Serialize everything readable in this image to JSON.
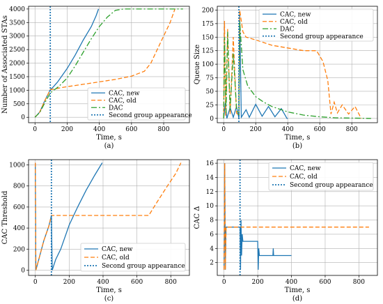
{
  "chart_data": [
    {
      "type": "line",
      "caption": "(a)",
      "xlabel": "Time, s",
      "ylabel": "Number of Associated STAs",
      "xlim": [
        -40,
        960
      ],
      "ylim": [
        -200,
        4100
      ],
      "xticks": [
        0,
        200,
        400,
        600,
        800
      ],
      "yticks": [
        0,
        500,
        1000,
        1500,
        2000,
        2500,
        3000,
        3500,
        4000
      ],
      "grid": true,
      "legend": "bottom-right",
      "series": [
        {
          "name": "CAC, new",
          "color": "#1f77b4",
          "dash": "",
          "points": [
            [
              0,
              0
            ],
            [
              30,
              200
            ],
            [
              60,
              600
            ],
            [
              95,
              1020
            ],
            [
              110,
              1100
            ],
            [
              140,
              1300
            ],
            [
              200,
              1800
            ],
            [
              250,
              2300
            ],
            [
              300,
              2850
            ],
            [
              350,
              3350
            ],
            [
              380,
              3750
            ],
            [
              395,
              4000
            ]
          ]
        },
        {
          "name": "CAC, old",
          "color": "#ff7f0e",
          "dash": "6,3",
          "points": [
            [
              0,
              0
            ],
            [
              30,
              200
            ],
            [
              60,
              600
            ],
            [
              95,
              1020
            ],
            [
              150,
              1080
            ],
            [
              200,
              1130
            ],
            [
              300,
              1220
            ],
            [
              400,
              1310
            ],
            [
              500,
              1400
            ],
            [
              600,
              1520
            ],
            [
              680,
              1700
            ],
            [
              720,
              2000
            ],
            [
              760,
              2500
            ],
            [
              800,
              3000
            ],
            [
              840,
              3500
            ],
            [
              870,
              4000
            ]
          ]
        },
        {
          "name": "DAC",
          "color": "#2ca02c",
          "dash": "8,3,2,3",
          "points": [
            [
              0,
              0
            ],
            [
              30,
              180
            ],
            [
              60,
              520
            ],
            [
              95,
              900
            ],
            [
              150,
              1150
            ],
            [
              200,
              1450
            ],
            [
              250,
              1900
            ],
            [
              300,
              2400
            ],
            [
              350,
              2900
            ],
            [
              400,
              3350
            ],
            [
              450,
              3700
            ],
            [
              500,
              3950
            ],
            [
              550,
              4000
            ],
            [
              920,
              4000
            ]
          ]
        },
        {
          "name": "Second group appearance",
          "color": "#1f77b4",
          "dash": "2,2",
          "vline": 95
        }
      ]
    },
    {
      "type": "line",
      "caption": "(b)",
      "xlabel": "Time, s",
      "ylabel": "Queue Size",
      "xlim": [
        -40,
        960
      ],
      "ylim": [
        -8,
        207
      ],
      "xticks": [
        0,
        200,
        400,
        600,
        800
      ],
      "yticks": [
        0,
        25,
        50,
        75,
        100,
        125,
        150,
        175,
        200
      ],
      "grid": true,
      "legend": "top-right",
      "series": [
        {
          "name": "CAC, new",
          "color": "#1f77b4",
          "dash": "",
          "points": [
            [
              0,
              0
            ],
            [
              10,
              28
            ],
            [
              20,
              0
            ],
            [
              40,
              20
            ],
            [
              60,
              2
            ],
            [
              80,
              22
            ],
            [
              95,
              0
            ],
            [
              100,
              195
            ],
            [
              110,
              2
            ],
            [
              140,
              16
            ],
            [
              160,
              2
            ],
            [
              200,
              26
            ],
            [
              240,
              4
            ],
            [
              280,
              22
            ],
            [
              320,
              3
            ],
            [
              360,
              18
            ],
            [
              395,
              0
            ],
            [
              400,
              0
            ]
          ]
        },
        {
          "name": "CAC, old",
          "color": "#ff7f0e",
          "dash": "6,3",
          "points": [
            [
              0,
              0
            ],
            [
              5,
              180
            ],
            [
              12,
              5
            ],
            [
              25,
              165
            ],
            [
              40,
              8
            ],
            [
              60,
              150
            ],
            [
              80,
              10
            ],
            [
              95,
              5
            ],
            [
              100,
              200
            ],
            [
              120,
              160
            ],
            [
              140,
              150
            ],
            [
              200,
              145
            ],
            [
              300,
              135
            ],
            [
              400,
              130
            ],
            [
              500,
              125
            ],
            [
              580,
              125
            ],
            [
              620,
              105
            ],
            [
              650,
              70
            ],
            [
              670,
              8
            ],
            [
              690,
              30
            ],
            [
              710,
              10
            ],
            [
              740,
              25
            ],
            [
              780,
              8
            ],
            [
              820,
              22
            ],
            [
              850,
              5
            ],
            [
              860,
              0
            ]
          ]
        },
        {
          "name": "DAC",
          "color": "#2ca02c",
          "dash": "8,3,2,3",
          "points": [
            [
              0,
              0
            ],
            [
              5,
              150
            ],
            [
              15,
              10
            ],
            [
              25,
              160
            ],
            [
              40,
              15
            ],
            [
              60,
              120
            ],
            [
              80,
              20
            ],
            [
              95,
              5
            ],
            [
              100,
              180
            ],
            [
              120,
              90
            ],
            [
              150,
              60
            ],
            [
              200,
              40
            ],
            [
              250,
              30
            ],
            [
              300,
              22
            ],
            [
              400,
              12
            ],
            [
              500,
              6
            ],
            [
              600,
              3
            ],
            [
              700,
              1
            ],
            [
              920,
              0
            ]
          ]
        },
        {
          "name": "Second group appearance",
          "color": "#1f77b4",
          "dash": "2,2",
          "vline": 95
        }
      ]
    },
    {
      "type": "line",
      "caption": "(c)",
      "xlabel": "Time, s",
      "ylabel": "CAC Threshold",
      "xlim": [
        -40,
        910
      ],
      "ylim": [
        -50,
        1050
      ],
      "xticks": [
        0,
        200,
        400,
        600,
        800
      ],
      "yticks": [
        0,
        200,
        400,
        600,
        800,
        1000
      ],
      "grid": true,
      "legend": "bottom-right",
      "series": [
        {
          "name": "CAC, new",
          "color": "#1f77b4",
          "dash": "",
          "points": [
            [
              0,
              1020
            ],
            [
              3,
              0
            ],
            [
              20,
              100
            ],
            [
              50,
              280
            ],
            [
              80,
              420
            ],
            [
              95,
              520
            ],
            [
              100,
              0
            ],
            [
              120,
              100
            ],
            [
              150,
              200
            ],
            [
              200,
              430
            ],
            [
              250,
              600
            ],
            [
              300,
              760
            ],
            [
              350,
              900
            ],
            [
              395,
              1020
            ]
          ]
        },
        {
          "name": "CAC, old",
          "color": "#ff7f0e",
          "dash": "6,3",
          "points": [
            [
              0,
              1020
            ],
            [
              3,
              0
            ],
            [
              20,
              100
            ],
            [
              50,
              280
            ],
            [
              80,
              420
            ],
            [
              95,
              520
            ],
            [
              200,
              520
            ],
            [
              400,
              520
            ],
            [
              600,
              520
            ],
            [
              670,
              520
            ],
            [
              720,
              650
            ],
            [
              780,
              800
            ],
            [
              830,
              920
            ],
            [
              860,
              1020
            ]
          ]
        },
        {
          "name": "Second group appearance",
          "color": "#1f77b4",
          "dash": "2,2",
          "vline": 95
        }
      ]
    },
    {
      "type": "line",
      "caption": "(d)",
      "xlabel": "Time, s",
      "ylabel": "CAC Δ",
      "xlim": [
        -40,
        910
      ],
      "ylim": [
        0.2,
        16.5
      ],
      "xticks": [
        0,
        200,
        400,
        600,
        800
      ],
      "yticks": [
        2,
        4,
        6,
        8,
        10,
        12,
        14,
        16
      ],
      "grid": true,
      "legend": "top-right",
      "series": [
        {
          "name": "CAC, new",
          "color": "#1f77b4",
          "dash": "",
          "points": [
            [
              0,
              1
            ],
            [
              4,
              16
            ],
            [
              8,
              1
            ],
            [
              12,
              7
            ],
            [
              95,
              7
            ],
            [
              98,
              1
            ],
            [
              101,
              8
            ],
            [
              104,
              3
            ],
            [
              108,
              6
            ],
            [
              112,
              5
            ],
            [
              200,
              5
            ],
            [
              203,
              1
            ],
            [
              206,
              4
            ],
            [
              210,
              3
            ],
            [
              290,
              3
            ],
            [
              292,
              4
            ],
            [
              294,
              3
            ],
            [
              400,
              3
            ]
          ]
        },
        {
          "name": "CAC, old",
          "color": "#ff7f0e",
          "dash": "6,3",
          "points": [
            [
              0,
              1
            ],
            [
              4,
              16
            ],
            [
              8,
              1
            ],
            [
              12,
              7
            ],
            [
              860,
              7
            ]
          ]
        },
        {
          "name": "Second group appearance",
          "color": "#1f77b4",
          "dash": "2,2",
          "vline": 95
        }
      ]
    }
  ]
}
